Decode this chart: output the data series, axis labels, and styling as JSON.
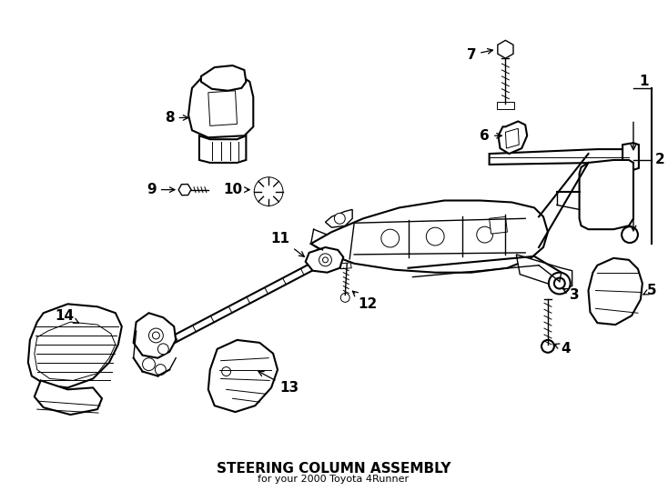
{
  "title": "STEERING COLUMN ASSEMBLY",
  "subtitle": "for your 2000 Toyota 4Runner",
  "background_color": "#ffffff",
  "line_color": "#000000",
  "fig_width": 7.34,
  "fig_height": 5.4,
  "dpi": 100
}
